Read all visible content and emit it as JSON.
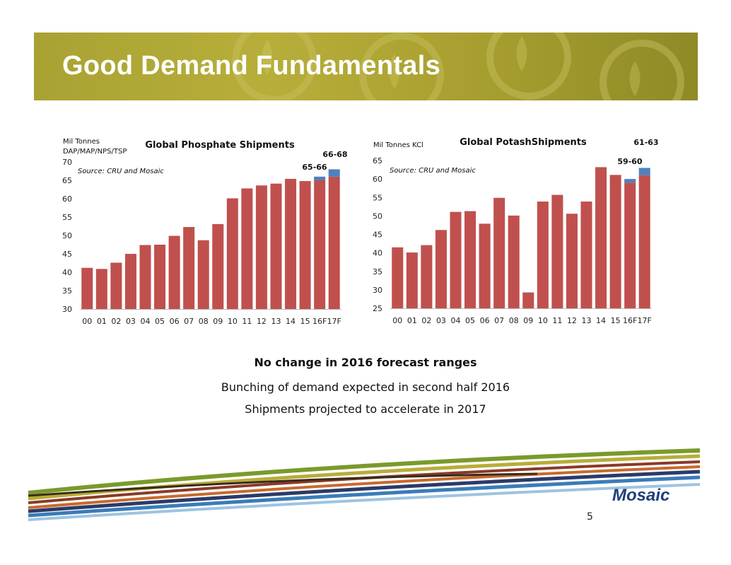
{
  "slide": {
    "title": "Good Demand Fundamentals",
    "captions": {
      "bold": "No change in 2016 forecast ranges",
      "line1": "Bunching of demand expected in second half 2016",
      "line2": "Shipments projected to accelerate in 2017"
    },
    "page_number": "5",
    "logo_text": "Mosaic",
    "colors": {
      "banner": "#a9a233",
      "bar": "#c0504d",
      "forecast": "#4f81bd"
    }
  },
  "chart_data": [
    {
      "type": "bar",
      "title": "Global Phosphate Shipments",
      "ylabel_line1": "Mil Tonnes",
      "ylabel_line2": "DAP/MAP/NPS/TSP",
      "source": "Source: CRU and Mosaic",
      "ylim": [
        30,
        70
      ],
      "yticks": [
        30,
        35,
        40,
        45,
        50,
        55,
        60,
        65,
        70
      ],
      "categories": [
        "00",
        "01",
        "02",
        "03",
        "04",
        "05",
        "06",
        "07",
        "08",
        "09",
        "10",
        "11",
        "12",
        "13",
        "14",
        "15",
        "16F",
        "17F"
      ],
      "series": [
        {
          "name": "Shipments",
          "values": [
            41.2,
            40.9,
            42.6,
            45.0,
            47.4,
            47.5,
            49.9,
            52.3,
            48.7,
            53.1,
            60.1,
            62.8,
            63.6,
            64.1,
            65.4,
            64.8,
            65,
            66
          ]
        },
        {
          "name": "Forecast range",
          "values": [
            0,
            0,
            0,
            0,
            0,
            0,
            0,
            0,
            0,
            0,
            0,
            0,
            0,
            0,
            0,
            0,
            1,
            2
          ]
        }
      ],
      "annotations": [
        {
          "category": "16F",
          "text": "65-66"
        },
        {
          "category": "17F",
          "text": "66-68"
        }
      ]
    },
    {
      "type": "bar",
      "title": "Global PotashShipments",
      "ylabel_line1": "Mil Tonnes KCl",
      "ylabel_line2": "",
      "source": "Source: CRU and Mosaic",
      "ylim": [
        25,
        65
      ],
      "yticks": [
        25,
        30,
        35,
        40,
        45,
        50,
        55,
        60,
        65
      ],
      "categories": [
        "00",
        "01",
        "02",
        "03",
        "04",
        "05",
        "06",
        "07",
        "08",
        "09",
        "10",
        "11",
        "12",
        "13",
        "14",
        "15",
        "16F",
        "17F"
      ],
      "series": [
        {
          "name": "Shipments",
          "values": [
            41.5,
            40.1,
            42.1,
            46.2,
            51.1,
            51.3,
            47.9,
            54.9,
            50.1,
            29.3,
            53.9,
            55.7,
            50.6,
            53.9,
            63.2,
            61.1,
            59,
            61
          ]
        },
        {
          "name": "Forecast range",
          "values": [
            0,
            0,
            0,
            0,
            0,
            0,
            0,
            0,
            0,
            0,
            0,
            0,
            0,
            0,
            0,
            0,
            1,
            2
          ]
        }
      ],
      "annotations": [
        {
          "category": "16F",
          "text": "59-60"
        },
        {
          "category": "17F",
          "text": "61-63"
        }
      ]
    }
  ]
}
